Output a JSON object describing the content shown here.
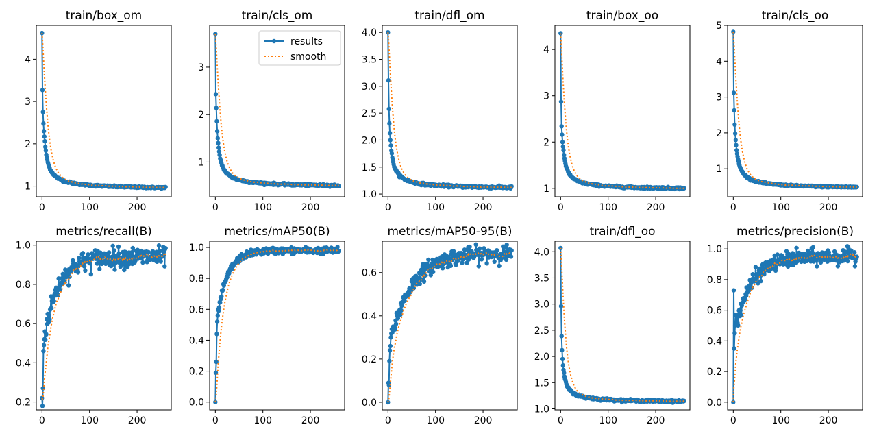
{
  "figure": {
    "legend": {
      "results_label": "results",
      "smooth_label": "smooth",
      "placement": "upper-right"
    },
    "colors": {
      "results": "#1f77b4",
      "smooth": "#ff7f0e",
      "frame": "#000000",
      "background": "#ffffff"
    }
  },
  "chart_data": [
    {
      "type": "line",
      "title": "train/box_om",
      "xlabel": "",
      "ylabel": "",
      "grid": false,
      "xlim": [
        -12,
        272
      ],
      "ylim": [
        0.75,
        4.8
      ],
      "xticks": [
        0,
        100,
        200
      ],
      "yticks": [
        1,
        2,
        3,
        4
      ],
      "ytick_labels": [
        "1",
        "2",
        "3",
        "4"
      ],
      "curve": {
        "kind": "decay",
        "n": 261,
        "start": [
          4.62,
          3.27,
          2.75,
          2.48,
          2.3,
          2.17,
          2.06
        ],
        "floor": 0.92,
        "noise": 0.01
      },
      "series": [
        {
          "name": "results"
        },
        {
          "name": "smooth"
        }
      ]
    },
    {
      "type": "line",
      "title": "train/cls_om",
      "xlabel": "",
      "ylabel": "",
      "grid": false,
      "xlim": [
        -12,
        272
      ],
      "ylim": [
        0.27,
        3.88
      ],
      "xticks": [
        0,
        100,
        200
      ],
      "yticks": [
        1,
        2,
        3
      ],
      "ytick_labels": [
        "1",
        "2",
        "3"
      ],
      "curve": {
        "kind": "decay",
        "n": 261,
        "start": [
          3.7,
          2.43,
          2.14,
          1.86,
          1.65,
          1.5,
          1.4
        ],
        "floor": 0.47,
        "noise": 0.01
      },
      "series": [
        {
          "name": "results"
        },
        {
          "name": "smooth"
        }
      ]
    },
    {
      "type": "line",
      "title": "train/dfl_om",
      "xlabel": "",
      "ylabel": "",
      "grid": false,
      "xlim": [
        -12,
        272
      ],
      "ylim": [
        0.95,
        4.13
      ],
      "xticks": [
        0,
        100,
        200
      ],
      "yticks": [
        1.0,
        1.5,
        2.0,
        2.5,
        3.0,
        3.5,
        4.0
      ],
      "ytick_labels": [
        "1.0",
        "1.5",
        "2.0",
        "2.5",
        "3.0",
        "3.5",
        "4.0"
      ],
      "curve": {
        "kind": "decay",
        "n": 261,
        "start": [
          4.0,
          3.11,
          2.58,
          2.31,
          2.13,
          2.0,
          1.9
        ],
        "floor": 1.09,
        "noise": 0.01
      },
      "series": [
        {
          "name": "results"
        },
        {
          "name": "smooth"
        }
      ]
    },
    {
      "type": "line",
      "title": "train/box_oo",
      "xlabel": "",
      "ylabel": "",
      "grid": false,
      "xlim": [
        -12,
        272
      ],
      "ylim": [
        0.82,
        4.52
      ],
      "xticks": [
        0,
        100,
        200
      ],
      "yticks": [
        1,
        2,
        3,
        4
      ],
      "ytick_labels": [
        "1",
        "2",
        "3",
        "4"
      ],
      "curve": {
        "kind": "decay",
        "n": 261,
        "start": [
          4.35,
          2.87,
          2.34,
          2.16,
          2.0,
          1.9,
          1.82
        ],
        "floor": 0.97,
        "noise": 0.01
      },
      "series": [
        {
          "name": "results"
        },
        {
          "name": "smooth"
        }
      ]
    },
    {
      "type": "line",
      "title": "train/cls_oo",
      "xlabel": "",
      "ylabel": "",
      "grid": false,
      "xlim": [
        -12,
        272
      ],
      "ylim": [
        0.22,
        5.0
      ],
      "xticks": [
        0,
        100,
        200
      ],
      "yticks": [
        1,
        2,
        3,
        4,
        5
      ],
      "ytick_labels": [
        "1",
        "2",
        "3",
        "4",
        "5"
      ],
      "curve": {
        "kind": "decay",
        "n": 261,
        "start": [
          4.82,
          3.12,
          2.63,
          2.23,
          1.98,
          1.8,
          1.66
        ],
        "floor": 0.44,
        "noise": 0.01
      },
      "series": [
        {
          "name": "results"
        },
        {
          "name": "smooth"
        }
      ]
    },
    {
      "type": "line",
      "title": "metrics/recall(B)",
      "xlabel": "",
      "ylabel": "",
      "grid": false,
      "xlim": [
        -12,
        272
      ],
      "ylim": [
        0.16,
        1.02
      ],
      "xticks": [
        0,
        100,
        200
      ],
      "yticks": [
        0.2,
        0.4,
        0.6,
        0.8,
        1.0
      ],
      "ytick_labels": [
        "0.2",
        "0.4",
        "0.6",
        "0.8",
        "1.0"
      ],
      "curve": {
        "kind": "rise",
        "n": 261,
        "start": [
          0.22,
          0.18,
          0.27,
          0.46,
          0.49,
          0.52,
          0.56
        ],
        "plateau": 0.94,
        "rate": 30,
        "noise": 0.025
      },
      "series": [
        {
          "name": "results"
        },
        {
          "name": "smooth"
        }
      ]
    },
    {
      "type": "line",
      "title": "metrics/mAP50(B)",
      "xlabel": "",
      "ylabel": "",
      "grid": false,
      "xlim": [
        -12,
        272
      ],
      "ylim": [
        -0.05,
        1.04
      ],
      "xticks": [
        0,
        100,
        200
      ],
      "yticks": [
        0.0,
        0.2,
        0.4,
        0.6,
        0.8,
        1.0
      ],
      "ytick_labels": [
        "0.0",
        "0.2",
        "0.4",
        "0.6",
        "0.8",
        "1.0"
      ],
      "curve": {
        "kind": "rise",
        "n": 261,
        "start": [
          0.0,
          0.19,
          0.26,
          0.44,
          0.52,
          0.56,
          0.6
        ],
        "plateau": 0.98,
        "rate": 22,
        "noise": 0.01
      },
      "series": [
        {
          "name": "results"
        },
        {
          "name": "smooth"
        }
      ]
    },
    {
      "type": "line",
      "title": "metrics/mAP50-95(B)",
      "xlabel": "",
      "ylabel": "",
      "grid": false,
      "xlim": [
        -12,
        272
      ],
      "ylim": [
        -0.035,
        0.745
      ],
      "xticks": [
        0,
        100,
        200
      ],
      "yticks": [
        0.0,
        0.2,
        0.4,
        0.6
      ],
      "ytick_labels": [
        "0.0",
        "0.2",
        "0.4",
        "0.6"
      ],
      "curve": {
        "kind": "rise",
        "n": 261,
        "start": [
          0.0,
          0.09,
          0.08,
          0.19,
          0.24,
          0.26,
          0.3
        ],
        "plateau": 0.69,
        "rate": 45,
        "noise": 0.018
      },
      "series": [
        {
          "name": "results"
        },
        {
          "name": "smooth"
        }
      ]
    },
    {
      "type": "line",
      "title": "train/dfl_oo",
      "xlabel": "",
      "ylabel": "",
      "grid": false,
      "xlim": [
        -12,
        272
      ],
      "ylim": [
        0.98,
        4.2
      ],
      "xticks": [
        0,
        100,
        200
      ],
      "yticks": [
        1.0,
        1.5,
        2.0,
        2.5,
        3.0,
        3.5,
        4.0
      ],
      "ytick_labels": [
        "1.0",
        "1.5",
        "2.0",
        "2.5",
        "3.0",
        "3.5",
        "4.0"
      ],
      "curve": {
        "kind": "decay",
        "n": 261,
        "start": [
          4.07,
          2.96,
          2.39,
          2.12,
          1.95,
          1.83,
          1.74
        ],
        "floor": 1.12,
        "noise": 0.01
      },
      "series": [
        {
          "name": "results"
        },
        {
          "name": "smooth"
        }
      ]
    },
    {
      "type": "line",
      "title": "metrics/precision(B)",
      "xlabel": "",
      "ylabel": "",
      "grid": false,
      "xlim": [
        -12,
        272
      ],
      "ylim": [
        -0.05,
        1.05
      ],
      "xticks": [
        0,
        100,
        200
      ],
      "yticks": [
        0.0,
        0.2,
        0.4,
        0.6,
        0.8,
        1.0
      ],
      "ytick_labels": [
        "0.0",
        "0.2",
        "0.4",
        "0.6",
        "0.8",
        "1.0"
      ],
      "curve": {
        "kind": "rise",
        "n": 261,
        "start": [
          0.0,
          0.73,
          0.35,
          0.45,
          0.5,
          0.57,
          0.52
        ],
        "plateau": 0.95,
        "rate": 35,
        "noise": 0.025
      },
      "series": [
        {
          "name": "results"
        },
        {
          "name": "smooth"
        }
      ]
    }
  ]
}
